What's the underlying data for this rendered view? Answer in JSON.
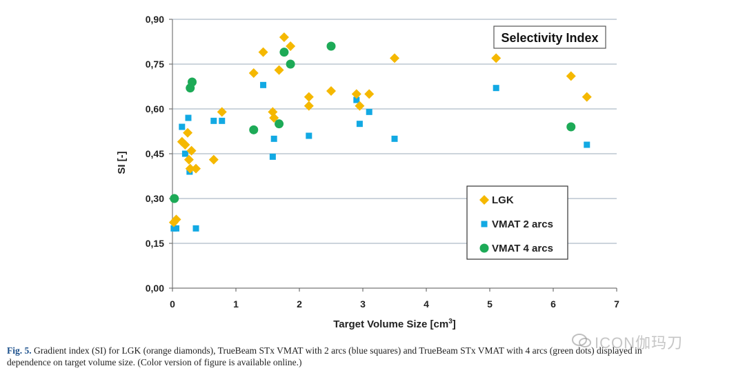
{
  "chart_data": {
    "type": "scatter",
    "annotation": "Selectivity Index",
    "xlabel": "Target Volume Size [cm³]",
    "ylabel": "SI [-]",
    "xlim": [
      0,
      7
    ],
    "ylim": [
      0,
      0.9
    ],
    "xticks": [
      "0",
      "1",
      "2",
      "3",
      "4",
      "5",
      "6",
      "7"
    ],
    "yticks": [
      "0,00",
      "0,15",
      "0,30",
      "0,45",
      "0,60",
      "0,75",
      "0,90"
    ],
    "grid": "horizontal",
    "legend_position": "bottom-right",
    "series": [
      {
        "name": "LGK",
        "marker": "diamond",
        "color": "#F5B800",
        "points": [
          [
            0.02,
            0.22
          ],
          [
            0.06,
            0.23
          ],
          [
            0.15,
            0.49
          ],
          [
            0.2,
            0.48
          ],
          [
            0.24,
            0.52
          ],
          [
            0.26,
            0.43
          ],
          [
            0.28,
            0.4
          ],
          [
            0.3,
            0.46
          ],
          [
            0.37,
            0.4
          ],
          [
            0.65,
            0.43
          ],
          [
            0.78,
            0.59
          ],
          [
            1.28,
            0.72
          ],
          [
            1.43,
            0.79
          ],
          [
            1.58,
            0.59
          ],
          [
            1.6,
            0.57
          ],
          [
            1.68,
            0.73
          ],
          [
            1.76,
            0.84
          ],
          [
            1.86,
            0.81
          ],
          [
            2.15,
            0.64
          ],
          [
            2.15,
            0.61
          ],
          [
            2.5,
            0.66
          ],
          [
            2.9,
            0.65
          ],
          [
            2.95,
            0.61
          ],
          [
            3.1,
            0.65
          ],
          [
            3.5,
            0.77
          ],
          [
            5.1,
            0.77
          ],
          [
            6.28,
            0.71
          ],
          [
            6.53,
            0.64
          ]
        ]
      },
      {
        "name": "VMAT 2 arcs",
        "marker": "square",
        "color": "#12A9E3",
        "points": [
          [
            0.02,
            0.2
          ],
          [
            0.06,
            0.2
          ],
          [
            0.15,
            0.54
          ],
          [
            0.2,
            0.45
          ],
          [
            0.25,
            0.57
          ],
          [
            0.27,
            0.39
          ],
          [
            0.37,
            0.2
          ],
          [
            0.65,
            0.56
          ],
          [
            0.78,
            0.56
          ],
          [
            1.43,
            0.68
          ],
          [
            1.58,
            0.44
          ],
          [
            1.6,
            0.5
          ],
          [
            2.15,
            0.51
          ],
          [
            2.9,
            0.63
          ],
          [
            2.95,
            0.55
          ],
          [
            3.1,
            0.59
          ],
          [
            3.5,
            0.5
          ],
          [
            5.1,
            0.67
          ],
          [
            6.53,
            0.48
          ]
        ]
      },
      {
        "name": "VMAT 4 arcs",
        "marker": "circle",
        "color": "#1DAA57",
        "points": [
          [
            0.03,
            0.3
          ],
          [
            0.28,
            0.67
          ],
          [
            0.31,
            0.69
          ],
          [
            1.28,
            0.53
          ],
          [
            1.68,
            0.55
          ],
          [
            1.76,
            0.79
          ],
          [
            1.86,
            0.75
          ],
          [
            2.5,
            0.81
          ],
          [
            6.28,
            0.54
          ]
        ]
      }
    ]
  },
  "caption": {
    "label": "Fig. 5.",
    "line1": "Gradient index (SI) for LGK (orange diamonds), TrueBeam STx VMAT with 2 arcs (blue squares) and TrueBeam STx VMAT with 4 arcs (green dots) displayed in",
    "line2": "dependence on target volume size. (Color version of figure is available online.)"
  },
  "watermark": "ICON伽玛刀"
}
